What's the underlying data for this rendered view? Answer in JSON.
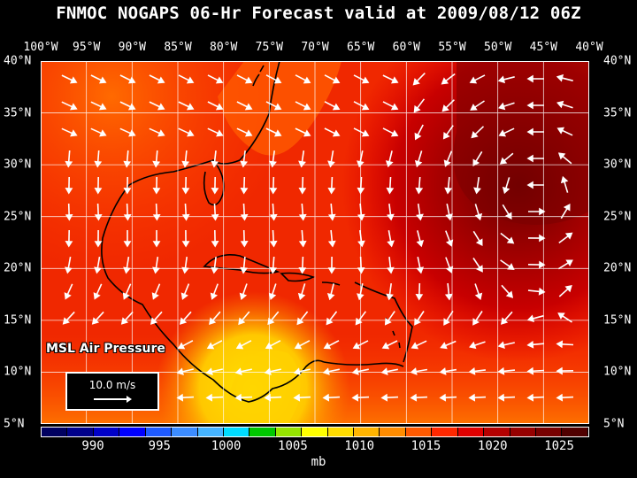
{
  "title": "FNMOC NOGAPS 06-Hr Forecast valid at 2009/08/12 06Z",
  "lon_labels": [
    "100°W",
    "95°W",
    "90°W",
    "85°W",
    "80°W",
    "75°W",
    "70°W",
    "65°W",
    "60°W",
    "55°W",
    "50°W",
    "45°W",
    "40°W"
  ],
  "lat_labels": [
    "40°N",
    "35°N",
    "30°N",
    "25°N",
    "20°N",
    "15°N",
    "10°N",
    "5°N"
  ],
  "field_label": "MSL Air Pressure",
  "reference_vector": "10.0 m/s",
  "colorbar": {
    "colors": [
      "#000060",
      "#00008b",
      "#0000c8",
      "#0000ff",
      "#1e5aff",
      "#3c8cff",
      "#46b4ff",
      "#00dcff",
      "#00c800",
      "#96e600",
      "#ffff00",
      "#ffdc00",
      "#ffb400",
      "#ff8c00",
      "#ff5a00",
      "#ff2800",
      "#e10000",
      "#b40000",
      "#960000",
      "#780000",
      "#500000"
    ],
    "ticks": [
      "990",
      "995",
      "1000",
      "1005",
      "1010",
      "1015",
      "1020",
      "1025"
    ],
    "unit": "mb"
  }
}
